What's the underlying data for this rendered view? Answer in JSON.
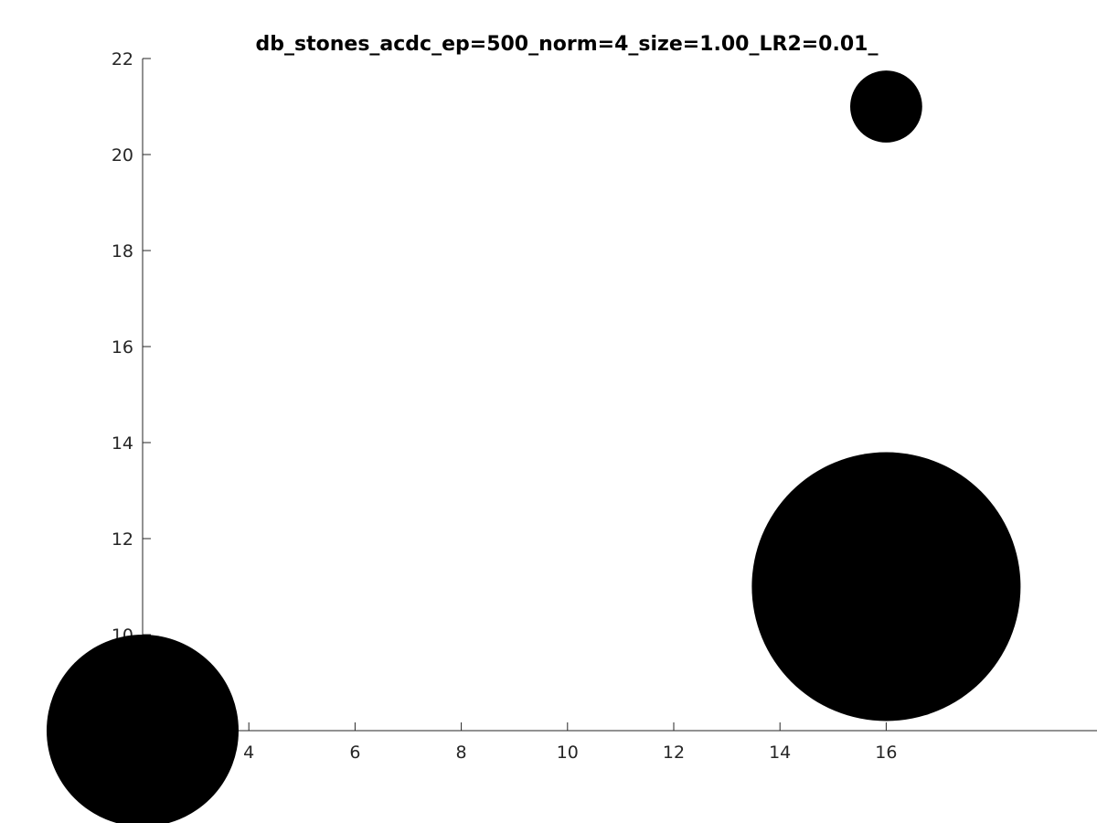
{
  "chart_data": {
    "type": "scatter",
    "title": "db_stones_acdc_ep=500_norm=4_size=1.00_LR2=0.01_",
    "xlabel": "",
    "ylabel": "",
    "xlim": [
      2,
      18
    ],
    "ylim": [
      8,
      22
    ],
    "x_ticks": [
      4,
      6,
      8,
      10,
      12,
      14,
      16
    ],
    "y_ticks": [
      10,
      12,
      14,
      16,
      18,
      20,
      22
    ],
    "grid": false,
    "marker_color": "#000000",
    "series": [
      {
        "points": [
          {
            "x": 16,
            "y": 21,
            "r": 0.75
          },
          {
            "x": 16,
            "y": 11,
            "r": 2.8
          },
          {
            "x": 2,
            "y": 8,
            "r": 2.0
          }
        ]
      }
    ]
  }
}
